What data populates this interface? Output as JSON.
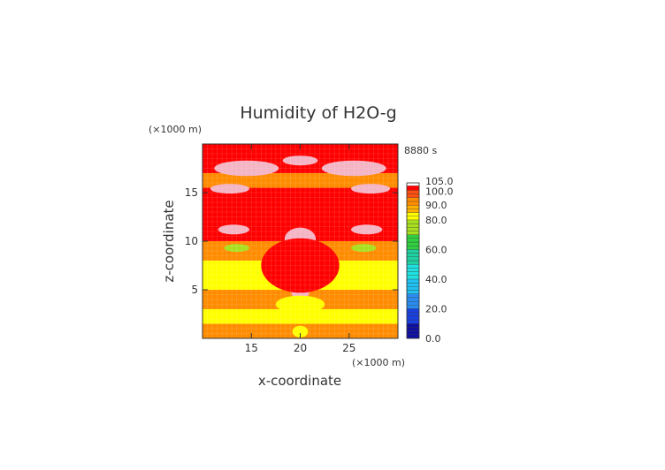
{
  "chart_data": {
    "type": "heatmap",
    "title": "Humidity of H2O-g",
    "time_label": "8880 s",
    "xlabel": "x-coordinate",
    "ylabel": "z-coordinate",
    "x_unit": "(×1000 m)",
    "y_unit": "(×1000 m)",
    "xlim": [
      10,
      30
    ],
    "ylim": [
      0,
      20
    ],
    "x_ticks": [
      {
        "value": 15,
        "label": "15"
      },
      {
        "value": 20,
        "label": "20"
      },
      {
        "value": 25,
        "label": "25"
      }
    ],
    "y_ticks": [
      {
        "value": 5,
        "label": "5"
      },
      {
        "value": 10,
        "label": "10"
      },
      {
        "value": 15,
        "label": "15"
      }
    ],
    "colorbar": {
      "min": 0,
      "max": 105,
      "labels": [
        {
          "value": 0,
          "label": "0.0"
        },
        {
          "value": 20,
          "label": "20.0"
        },
        {
          "value": 40,
          "label": "40.0"
        },
        {
          "value": 60,
          "label": "60.0"
        },
        {
          "value": 80,
          "label": "80.0"
        },
        {
          "value": 90,
          "label": "90.0"
        },
        {
          "value": 100,
          "label": "100.0"
        },
        {
          "value": 105,
          "label": "105.0"
        }
      ],
      "bands": [
        {
          "from": 0,
          "to": 10,
          "color": "#1010a0"
        },
        {
          "from": 10,
          "to": 20,
          "color": "#1a40e0"
        },
        {
          "from": 20,
          "to": 30,
          "color": "#2a8cf0"
        },
        {
          "from": 30,
          "to": 40,
          "color": "#20c0f0"
        },
        {
          "from": 40,
          "to": 50,
          "color": "#20e0e0"
        },
        {
          "from": 50,
          "to": 60,
          "color": "#20d0a0"
        },
        {
          "from": 60,
          "to": 70,
          "color": "#30d040"
        },
        {
          "from": 70,
          "to": 80,
          "color": "#a8e020"
        },
        {
          "from": 80,
          "to": 85,
          "color": "#ffff00"
        },
        {
          "from": 85,
          "to": 90,
          "color": "#ffb000"
        },
        {
          "from": 90,
          "to": 95,
          "color": "#ff8c00"
        },
        {
          "from": 95,
          "to": 100,
          "color": "#ff5010"
        },
        {
          "from": 100,
          "to": 103,
          "color": "#ff0000"
        },
        {
          "from": 103,
          "to": 105,
          "color": "#ffffff"
        }
      ]
    },
    "field": {
      "description_levels": {
        "yellow": 82,
        "orange": 92,
        "red": 101,
        "pink": 104,
        "green": 74
      },
      "z_bands": [
        {
          "z_from": 0,
          "z_to": 1.5,
          "level": 92
        },
        {
          "z_from": 1.5,
          "z_to": 3.0,
          "level": 82
        },
        {
          "z_from": 3.0,
          "z_to": 5.0,
          "level": 92
        },
        {
          "z_from": 5.0,
          "z_to": 8.0,
          "level": 82
        },
        {
          "z_from": 8.0,
          "z_to": 10.0,
          "level": 92
        },
        {
          "z_from": 10.0,
          "z_to": 15.5,
          "level": 101
        },
        {
          "z_from": 15.5,
          "z_to": 17.0,
          "level": 92
        },
        {
          "z_from": 17.0,
          "z_to": 18.5,
          "level": 101
        },
        {
          "z_from": 18.5,
          "z_to": 20.0,
          "level": 101
        }
      ],
      "blobs": [
        {
          "x": 20,
          "z": 6,
          "rx": 1.1,
          "rz": 2.4,
          "level": 104
        },
        {
          "x": 20,
          "z": 10.2,
          "rx": 1.6,
          "rz": 1.2,
          "level": 104
        },
        {
          "x": 20,
          "z": 8.4,
          "rx": 1.0,
          "rz": 1.0,
          "level": 104
        },
        {
          "x": 20,
          "z": 7.5,
          "rx": 4.0,
          "rz": 2.8,
          "level": 101
        },
        {
          "x": 14.5,
          "z": 17.5,
          "rx": 3.3,
          "rz": 0.8,
          "level": 104
        },
        {
          "x": 25.5,
          "z": 17.5,
          "rx": 3.3,
          "rz": 0.8,
          "level": 104
        },
        {
          "x": 20,
          "z": 18.3,
          "rx": 1.8,
          "rz": 0.5,
          "level": 104
        },
        {
          "x": 12.8,
          "z": 15.4,
          "rx": 2.0,
          "rz": 0.5,
          "level": 104
        },
        {
          "x": 27.2,
          "z": 15.4,
          "rx": 2.0,
          "rz": 0.5,
          "level": 104
        },
        {
          "x": 13.2,
          "z": 11.2,
          "rx": 1.6,
          "rz": 0.5,
          "level": 104
        },
        {
          "x": 26.8,
          "z": 11.2,
          "rx": 1.6,
          "rz": 0.5,
          "level": 104
        },
        {
          "x": 13.5,
          "z": 9.3,
          "rx": 1.3,
          "rz": 0.4,
          "level": 74
        },
        {
          "x": 26.5,
          "z": 9.3,
          "rx": 1.3,
          "rz": 0.4,
          "level": 74
        },
        {
          "x": 20,
          "z": 3.5,
          "rx": 2.5,
          "rz": 0.9,
          "level": 82
        },
        {
          "x": 20,
          "z": 0.7,
          "rx": 0.8,
          "rz": 0.6,
          "level": 82
        }
      ]
    }
  }
}
